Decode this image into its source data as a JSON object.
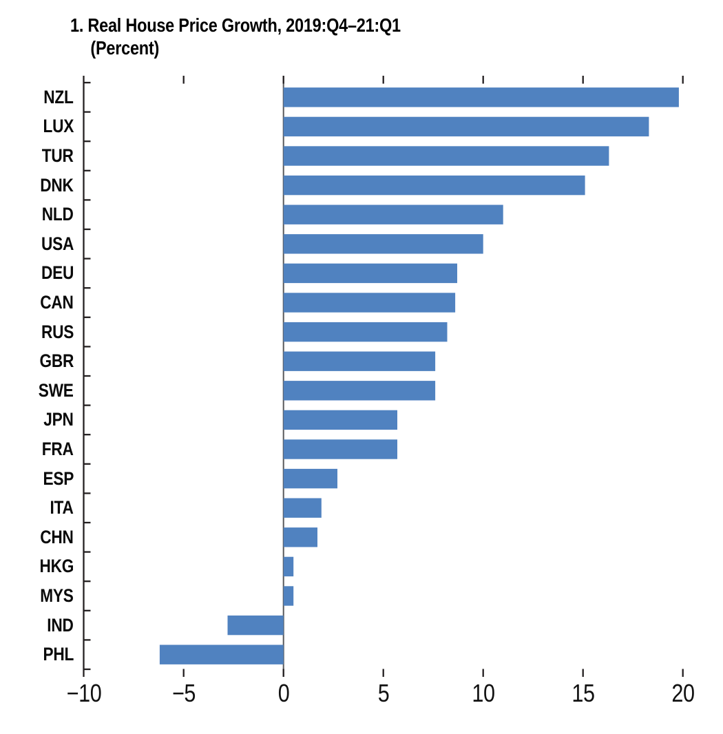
{
  "chart_data": {
    "type": "bar",
    "orientation": "horizontal",
    "title": "1. Real House Price Growth, 2019:Q4–21:Q1",
    "subtitle": "(Percent)",
    "categories": [
      "NZL",
      "LUX",
      "TUR",
      "DNK",
      "NLD",
      "USA",
      "DEU",
      "CAN",
      "RUS",
      "GBR",
      "SWE",
      "JPN",
      "FRA",
      "ESP",
      "ITA",
      "CHN",
      "HKG",
      "MYS",
      "IND",
      "PHL"
    ],
    "values": [
      19.8,
      18.3,
      16.3,
      15.1,
      11.0,
      10.0,
      8.7,
      8.6,
      8.2,
      7.6,
      7.6,
      5.7,
      5.7,
      2.7,
      1.9,
      1.7,
      0.5,
      0.5,
      -2.8,
      -6.2
    ],
    "x_ticks": [
      -10,
      -5,
      0,
      5,
      10,
      15,
      20
    ],
    "xlim": [
      -10,
      20.65
    ],
    "xlabel": "",
    "ylabel": "",
    "grid": false,
    "legend": null,
    "bar_color": "#5082c0",
    "zero_line_color": "#58595b",
    "axis_color": "#231f20",
    "text_color": "#000000"
  }
}
